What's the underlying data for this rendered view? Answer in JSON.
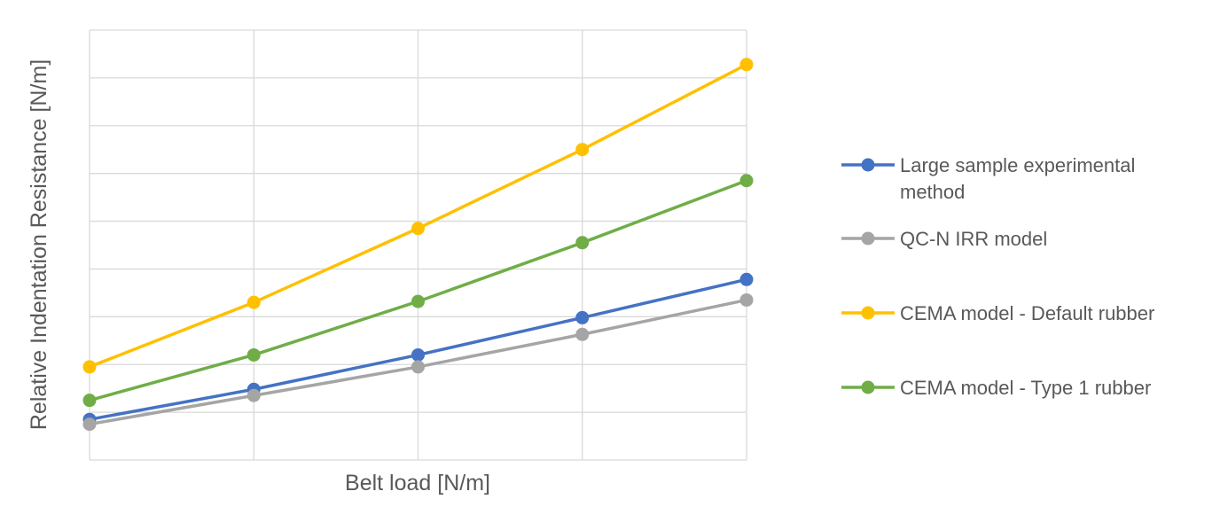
{
  "chart_data": {
    "type": "line",
    "xlabel": "Belt load [N/m]",
    "ylabel": "Relative Indentation Resistance [N/m]",
    "x": [
      1,
      2,
      3,
      4,
      5
    ],
    "xlim": [
      1,
      5
    ],
    "ylim": [
      0,
      9
    ],
    "grid": true,
    "legend_position": "right",
    "series": [
      {
        "name_lines": [
          "Large sample experimental",
          "method"
        ],
        "color": "#4472C4",
        "values": [
          0.85,
          1.48,
          2.2,
          2.98,
          3.78
        ]
      },
      {
        "name_lines": [
          "QC-N IRR model"
        ],
        "color": "#A5A5A5",
        "values": [
          0.75,
          1.35,
          1.95,
          2.63,
          3.35
        ]
      },
      {
        "name_lines": [
          "CEMA model - Default rubber"
        ],
        "color": "#FFC000",
        "values": [
          1.95,
          3.3,
          4.85,
          6.5,
          8.28
        ]
      },
      {
        "name_lines": [
          "CEMA model - Type 1 rubber"
        ],
        "color": "#70AD47",
        "values": [
          1.25,
          2.2,
          3.32,
          4.55,
          5.85
        ]
      }
    ]
  }
}
